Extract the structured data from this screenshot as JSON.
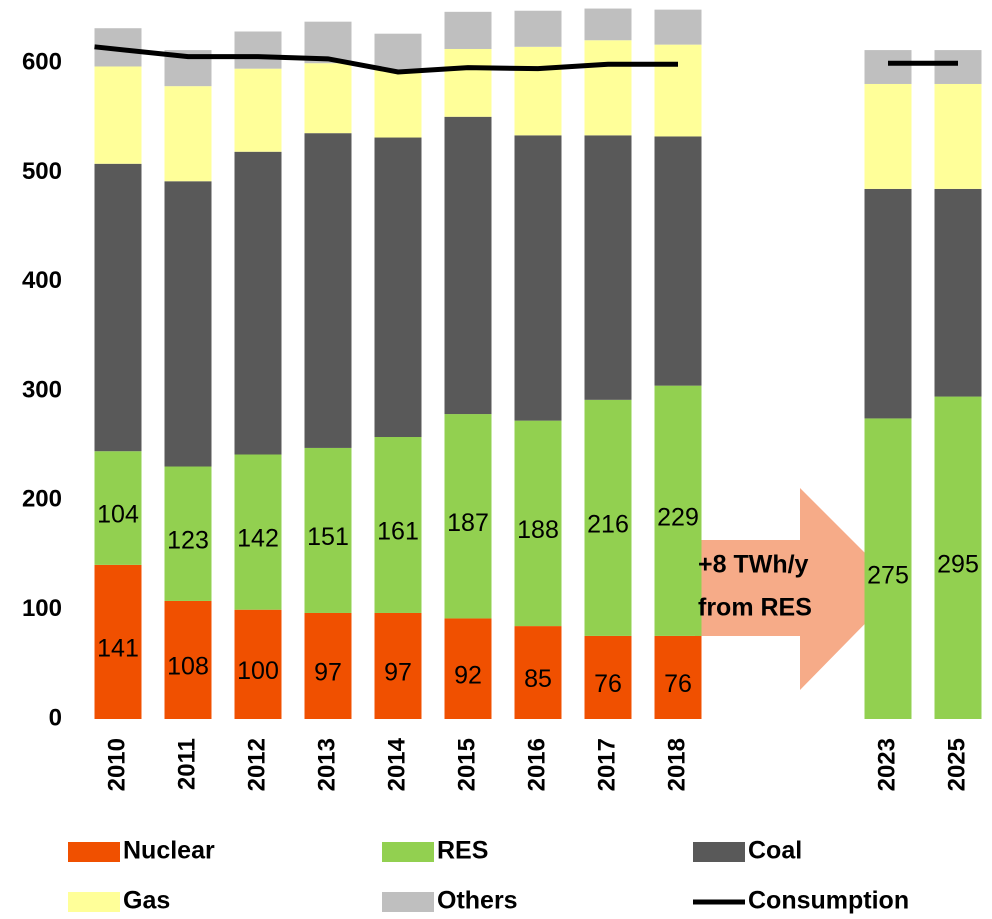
{
  "chart_data": {
    "type": "bar",
    "stacked": true,
    "categories": [
      "2010",
      "2011",
      "2012",
      "2013",
      "2014",
      "2015",
      "2016",
      "2017",
      "2018",
      null,
      null,
      "2023",
      "2025"
    ],
    "series": [
      {
        "name": "Nuclear",
        "color": "#f05000",
        "data_labels": true,
        "values": [
          141,
          108,
          100,
          97,
          97,
          92,
          85,
          76,
          76,
          null,
          null,
          null,
          null
        ]
      },
      {
        "name": "RES",
        "color": "#92d050",
        "data_labels": true,
        "values": [
          104,
          123,
          142,
          151,
          161,
          187,
          188,
          216,
          229,
          null,
          null,
          275,
          295
        ]
      },
      {
        "name": "Coal",
        "color": "#595959",
        "values": [
          263,
          261,
          277,
          288,
          274,
          272,
          261,
          242,
          228,
          null,
          null,
          210,
          190
        ]
      },
      {
        "name": "Gas",
        "color": "#ffff99",
        "values": [
          89,
          87,
          76,
          64,
          62,
          62,
          81,
          87,
          84,
          null,
          null,
          96,
          96
        ]
      },
      {
        "name": "Others",
        "color": "#bfbfbf",
        "values": [
          35,
          33,
          34,
          38,
          33,
          34,
          33,
          29,
          32,
          null,
          null,
          31,
          31
        ]
      },
      {
        "name": "Consumption",
        "color": "#000000",
        "type": "line",
        "values": [
          615,
          606,
          606,
          604,
          592,
          596,
          595,
          599,
          599,
          null,
          null,
          600,
          600
        ]
      }
    ],
    "annotation": [
      "+8 TWh/y",
      "from RES"
    ],
    "ylim": [
      0,
      660
    ],
    "yticks": [
      0,
      100,
      200,
      300,
      400,
      500,
      600
    ],
    "grid": false
  }
}
